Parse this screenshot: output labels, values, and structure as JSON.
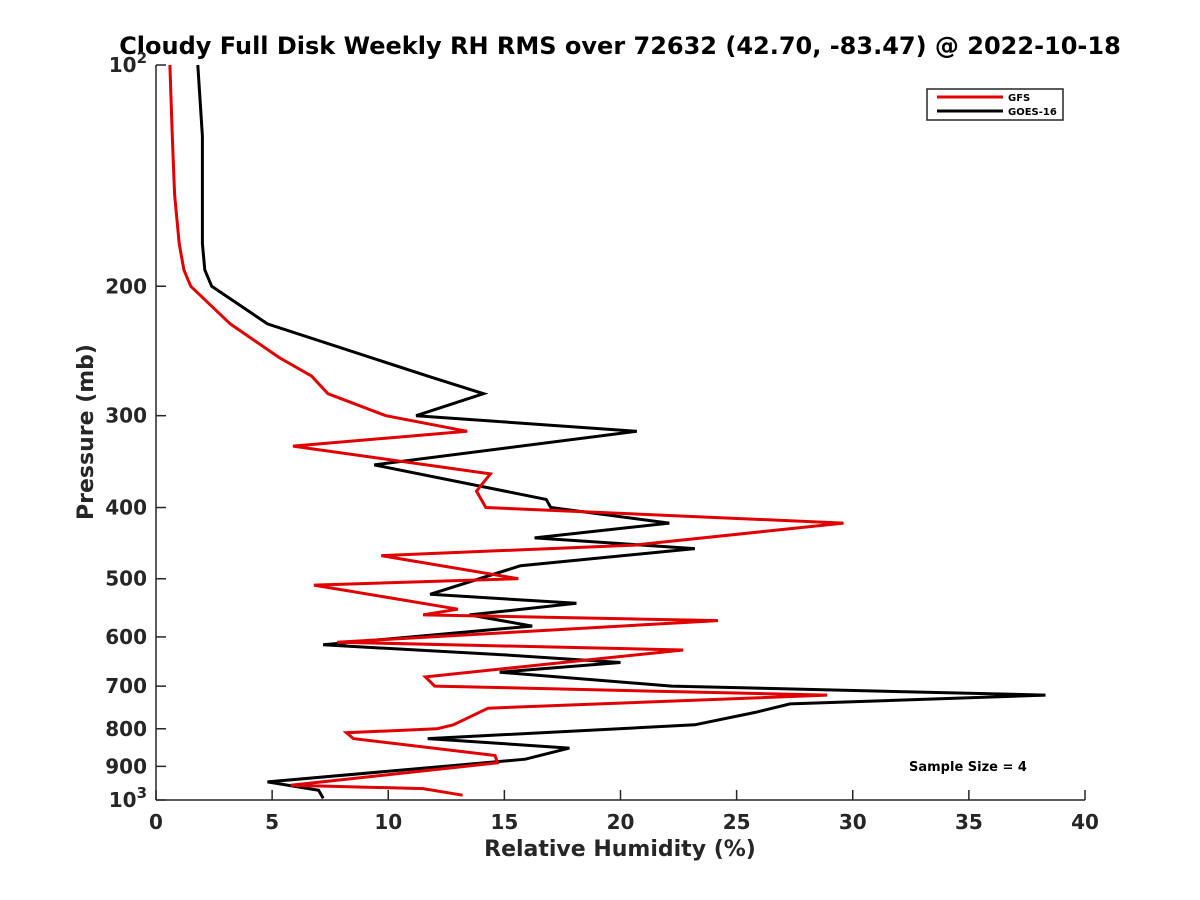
{
  "chart_data": {
    "type": "line",
    "title": "Cloudy Full Disk Weekly RH RMS over 72632 (42.70, -83.47) @ 2022-10-18",
    "xlabel": "Relative Humidity (%)",
    "ylabel": "Pressure (mb)",
    "xlim": [
      0,
      40
    ],
    "ylim": [
      100,
      1000
    ],
    "y_scale": "log",
    "y_reversed": true,
    "x_ticks": [
      0,
      5,
      10,
      15,
      20,
      25,
      30,
      35,
      40
    ],
    "y_ticks": [
      {
        "value": 100,
        "base": "10",
        "exp": "2"
      },
      {
        "value": 200,
        "label": "200"
      },
      {
        "value": 300,
        "label": "300"
      },
      {
        "value": 400,
        "label": "400"
      },
      {
        "value": 500,
        "label": "500"
      },
      {
        "value": 600,
        "label": "600"
      },
      {
        "value": 700,
        "label": "700"
      },
      {
        "value": 800,
        "label": "800"
      },
      {
        "value": 900,
        "label": "900"
      },
      {
        "value": 1000,
        "base": "10",
        "exp": "3"
      }
    ],
    "grid": false,
    "legend_position": "top-right",
    "annotation": "Sample Size = 4",
    "series": [
      {
        "name": "GFS",
        "color": "#e00000",
        "points": [
          [
            0.6,
            100
          ],
          [
            0.7,
            125
          ],
          [
            0.8,
            150
          ],
          [
            1.0,
            175
          ],
          [
            1.2,
            190
          ],
          [
            1.5,
            200
          ],
          [
            3.2,
            225
          ],
          [
            5.3,
            250
          ],
          [
            6.7,
            265
          ],
          [
            7.4,
            280
          ],
          [
            9.9,
            300
          ],
          [
            13.4,
            315
          ],
          [
            5.9,
            330
          ],
          [
            14.4,
            360
          ],
          [
            13.8,
            380
          ],
          [
            14.2,
            400
          ],
          [
            29.6,
            420
          ],
          [
            20.6,
            450
          ],
          [
            9.7,
            465
          ],
          [
            15.6,
            500
          ],
          [
            6.8,
            510
          ],
          [
            13.0,
            550
          ],
          [
            11.5,
            560
          ],
          [
            24.2,
            570
          ],
          [
            7.8,
            610
          ],
          [
            22.7,
            625
          ],
          [
            11.6,
            680
          ],
          [
            12.0,
            700
          ],
          [
            28.9,
            720
          ],
          [
            14.3,
            750
          ],
          [
            12.8,
            790
          ],
          [
            12.1,
            800
          ],
          [
            8.2,
            810
          ],
          [
            8.5,
            825
          ],
          [
            14.6,
            870
          ],
          [
            14.7,
            890
          ],
          [
            5.8,
            955
          ],
          [
            11.5,
            965
          ],
          [
            13.2,
            985
          ]
        ]
      },
      {
        "name": "GOES-16",
        "color": "#000000",
        "points": [
          [
            1.8,
            100
          ],
          [
            2.0,
            125
          ],
          [
            2.0,
            150
          ],
          [
            2.0,
            175
          ],
          [
            2.1,
            190
          ],
          [
            2.4,
            200
          ],
          [
            4.8,
            225
          ],
          [
            11.7,
            265
          ],
          [
            14.1,
            280
          ],
          [
            11.2,
            300
          ],
          [
            20.7,
            315
          ],
          [
            9.4,
            350
          ],
          [
            16.8,
            390
          ],
          [
            17.0,
            400
          ],
          [
            22.1,
            420
          ],
          [
            16.3,
            440
          ],
          [
            23.2,
            455
          ],
          [
            15.7,
            480
          ],
          [
            11.8,
            525
          ],
          [
            18.1,
            540
          ],
          [
            13.5,
            560
          ],
          [
            16.2,
            580
          ],
          [
            7.2,
            615
          ],
          [
            15.1,
            635
          ],
          [
            20.0,
            650
          ],
          [
            14.8,
            670
          ],
          [
            22.2,
            700
          ],
          [
            38.3,
            720
          ],
          [
            27.3,
            740
          ],
          [
            25.8,
            760
          ],
          [
            23.2,
            790
          ],
          [
            11.7,
            825
          ],
          [
            17.8,
            850
          ],
          [
            15.9,
            880
          ],
          [
            4.8,
            945
          ],
          [
            7.0,
            970
          ],
          [
            7.2,
            995
          ]
        ]
      }
    ]
  }
}
